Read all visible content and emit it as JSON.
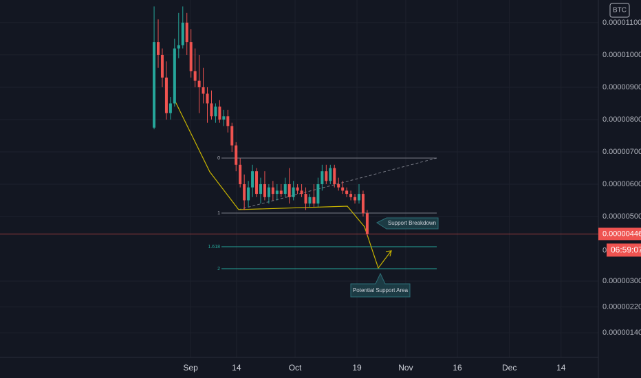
{
  "chart_data": {
    "type": "candlestick",
    "currency": "BTC",
    "up_color": "#26a69a",
    "down_color": "#ef5350",
    "open": [
      7.75e-06,
      1.04e-05,
      1e-05,
      9.3e-06,
      8.2e-06,
      8.5e-06,
      1.02e-05,
      1.03e-05,
      1.1e-05,
      1.04e-05,
      9.5e-06,
      9.2e-06,
      9e-06,
      8.8e-06,
      8.5e-06,
      8.1e-06,
      8.4e-06,
      8e-06,
      8.1e-06,
      7.8e-06,
      7.2e-06,
      6.6e-06,
      6e-06,
      5.5e-06,
      5.9e-06,
      6.4e-06,
      5.7e-06,
      6e-06,
      5.6e-06,
      5.9e-06,
      5.7e-06,
      5.8e-06,
      5.7e-06,
      6e-06,
      5.6e-06,
      5.9e-06,
      5.8e-06,
      5.7e-06,
      5.4e-06,
      5.6e-06,
      5.4e-06,
      6e-06,
      6.4e-06,
      6.1e-06,
      6.5e-06,
      6e-06,
      5.9e-06,
      5.8e-06,
      5.7e-06,
      5.6e-06,
      5.5e-06,
      5.7e-06,
      5.1e-06
    ],
    "high": [
      1.15e-05,
      1.11e-05,
      1.02e-05,
      9.8e-06,
      8.7e-06,
      1.05e-05,
      1.13e-05,
      1.15e-05,
      1.13e-05,
      1.08e-05,
      1.02e-05,
      1e-05,
      9.6e-06,
      9e-06,
      8.9e-06,
      8.5e-06,
      8.6e-06,
      8.3e-06,
      8.3e-06,
      7.9e-06,
      7.3e-06,
      6.8e-06,
      6.3e-06,
      6.1e-06,
      6.6e-06,
      6.5e-06,
      6.2e-06,
      6.4e-06,
      6e-06,
      6.1e-06,
      6e-06,
      6e-06,
      6.2e-06,
      6.5e-06,
      6.1e-06,
      6e-06,
      6e-06,
      5.9e-06,
      5.7e-06,
      6e-06,
      6.2e-06,
      6.6e-06,
      6.6e-06,
      6.6e-06,
      6.6e-06,
      6.2e-06,
      6.1e-06,
      5.9e-06,
      5.8e-06,
      5.7e-06,
      6e-06,
      5.8e-06,
      5.2e-06
    ],
    "low": [
      7.7e-06,
      9.6e-06,
      9e-06,
      8e-06,
      8e-06,
      8.4e-06,
      9.9e-06,
      1.02e-05,
      1e-05,
      9.3e-06,
      9e-06,
      8.2e-06,
      8.5e-06,
      7.9e-06,
      8e-06,
      7.9e-06,
      7.9e-06,
      7.8e-06,
      7.6e-06,
      7e-06,
      6.4e-06,
      5.9e-06,
      5.2e-06,
      5.3e-06,
      5.6e-06,
      5.6e-06,
      5.4e-06,
      5.5e-06,
      5.4e-06,
      5.5e-06,
      5.5e-06,
      5.6e-06,
      5.6e-06,
      5.4e-06,
      5.5e-06,
      5.7e-06,
      5.6e-06,
      5.2e-06,
      5.3e-06,
      5.3e-06,
      5.3e-06,
      5.8e-06,
      6e-06,
      6e-06,
      5.9e-06,
      5.8e-06,
      5.7e-06,
      5.6e-06,
      5.5e-06,
      5.4e-06,
      5.4e-06,
      5e-06,
      4.4e-06
    ],
    "close": [
      1.04e-05,
      1e-05,
      9.3e-06,
      8.2e-06,
      8.5e-06,
      1.02e-05,
      1.03e-05,
      1.1e-05,
      1.04e-05,
      9.5e-06,
      9.2e-06,
      9e-06,
      8.8e-06,
      8.5e-06,
      8.1e-06,
      8.4e-06,
      8e-06,
      8.1e-06,
      7.8e-06,
      7.2e-06,
      6.6e-06,
      6e-06,
      5.5e-06,
      5.9e-06,
      6.4e-06,
      5.7e-06,
      6e-06,
      5.6e-06,
      5.9e-06,
      5.7e-06,
      5.8e-06,
      5.7e-06,
      6e-06,
      5.6e-06,
      5.9e-06,
      5.8e-06,
      5.7e-06,
      5.4e-06,
      5.6e-06,
      5.4e-06,
      6e-06,
      6.4e-06,
      6.1e-06,
      6.5e-06,
      6e-06,
      5.9e-06,
      5.8e-06,
      5.7e-06,
      5.6e-06,
      5.5e-06,
      5.7e-06,
      5.1e-06,
      4.46e-06
    ],
    "xlim": [
      -37.6,
      108.4
    ],
    "xticks": [
      {
        "value": 8.9,
        "label": "Sep"
      },
      {
        "value": 20.1,
        "label": "14"
      },
      {
        "value": 34.4,
        "label": "Oct"
      },
      {
        "value": 49.5,
        "label": "19"
      },
      {
        "value": 61.4,
        "label": "Nov"
      },
      {
        "value": 74,
        "label": "16"
      },
      {
        "value": 86.7,
        "label": "Dec"
      },
      {
        "value": 99.3,
        "label": "14"
      }
    ],
    "ylim": [
      6.4e-07,
      1.17e-05
    ],
    "yticks": [
      {
        "value": 1.1e-05,
        "label": "0.00001100"
      },
      {
        "value": 1e-05,
        "label": "0.00001000"
      },
      {
        "value": 9e-06,
        "label": "0.00000900"
      },
      {
        "value": 8e-06,
        "label": "0.00000800"
      },
      {
        "value": 7e-06,
        "label": "0.00000700"
      },
      {
        "value": 6e-06,
        "label": "0.00000600"
      },
      {
        "value": 5e-06,
        "label": "0.00000500"
      },
      {
        "value": 3e-06,
        "label": "0.00000300"
      },
      {
        "value": 2.2e-06,
        "label": "0.00000220"
      },
      {
        "value": 1.4e-06,
        "label": "0.00000140"
      }
    ],
    "last_price": {
      "value": 4.46e-06,
      "label": "0.00000446"
    },
    "countdown": "06:59:07",
    "countdown_prefix": "0.",
    "fib_labels": [
      "0",
      "1",
      "1.618",
      "2"
    ],
    "annotations": [
      "Support Breakdown",
      "Potential Support Area"
    ]
  }
}
